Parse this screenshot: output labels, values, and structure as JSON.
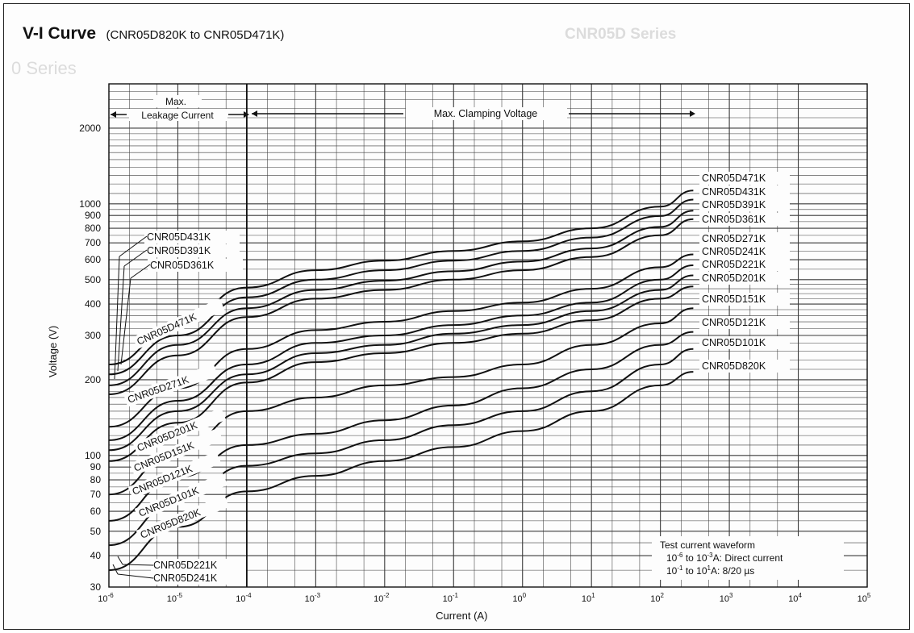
{
  "page": {
    "title": "V-I Curve",
    "subtitle": "(CNR05D820K to CNR05D471K)",
    "ghost_header": "CNR05D Series",
    "ghost_left": "0 Series"
  },
  "chart_data": {
    "type": "line",
    "x_scale": "log",
    "y_scale": "log",
    "xlim": [
      1e-06,
      10000
    ],
    "ylim": [
      30,
      3000
    ],
    "xlabel": "Current (A)",
    "ylabel": "Voltage (V)",
    "x_ticks": [
      {
        "value": 1e-06,
        "base": "10",
        "exp": "-6"
      },
      {
        "value": 1e-05,
        "base": "10",
        "exp": "-5"
      },
      {
        "value": 0.0001,
        "base": "10",
        "exp": "-4"
      },
      {
        "value": 0.001,
        "base": "10",
        "exp": "-3"
      },
      {
        "value": 0.01,
        "base": "10",
        "exp": "-2"
      },
      {
        "value": 0.1,
        "base": "10",
        "exp": "-1"
      },
      {
        "value": 1,
        "base": "10",
        "exp": "0"
      },
      {
        "value": 10,
        "base": "10",
        "exp": "1"
      },
      {
        "value": 100,
        "base": "10",
        "exp": "2"
      },
      {
        "value": 1000,
        "base": "10",
        "exp": "3"
      },
      {
        "value": 10000,
        "base": "10",
        "exp": "4"
      },
      {
        "value": 100000,
        "base": "10",
        "exp": "5"
      }
    ],
    "y_ticks": [
      {
        "value": 2000,
        "label": "2000"
      },
      {
        "value": 1000,
        "label": "1000"
      },
      {
        "value": 900,
        "label": "900"
      },
      {
        "value": 800,
        "label": "800"
      },
      {
        "value": 700,
        "label": "700"
      },
      {
        "value": 600,
        "label": "600"
      },
      {
        "value": 500,
        "label": "500"
      },
      {
        "value": 400,
        "label": "400"
      },
      {
        "value": 300,
        "label": "300"
      },
      {
        "value": 200,
        "label": "200"
      },
      {
        "value": 100,
        "label": "100"
      },
      {
        "value": 90,
        "label": "90"
      },
      {
        "value": 80,
        "label": "80"
      },
      {
        "value": 70,
        "label": "70"
      },
      {
        "value": 60,
        "label": "60"
      },
      {
        "value": 50,
        "label": "50"
      },
      {
        "value": 40,
        "label": "40"
      },
      {
        "value": 30,
        "label": "30"
      }
    ],
    "x_grid": [
      1e-06,
      2e-06,
      5e-06,
      1e-05,
      2e-05,
      5e-05,
      0.0001,
      0.0002,
      0.0005,
      0.001,
      0.002,
      0.005,
      0.01,
      0.02,
      0.05,
      0.1,
      0.2,
      0.5,
      1,
      2,
      5,
      10,
      20,
      50,
      100,
      200,
      500,
      1000,
      2000,
      5000,
      10000,
      100000
    ],
    "y_grid": [
      30,
      35,
      40,
      45,
      50,
      55,
      60,
      65,
      70,
      75,
      80,
      85,
      90,
      95,
      100,
      110,
      120,
      130,
      140,
      150,
      160,
      170,
      180,
      190,
      200,
      220,
      240,
      260,
      280,
      300,
      320,
      340,
      360,
      380,
      400,
      420,
      440,
      460,
      480,
      500,
      550,
      600,
      650,
      700,
      750,
      800,
      850,
      900,
      950,
      1000,
      1100,
      1200,
      1300,
      1400,
      1500,
      1600,
      1700,
      1800,
      1900,
      2000,
      2200,
      2400,
      2600,
      2800,
      3000
    ],
    "series": [
      {
        "name": "CNR05D820K",
        "x": [
          1e-06,
          1e-05,
          0.0001,
          0.001,
          0.01,
          0.1,
          1,
          10,
          100,
          300
        ],
        "y": [
          35,
          52,
          72,
          83,
          95,
          108,
          125,
          150,
          190,
          215
        ],
        "end_label": "CNR05D820K",
        "start_label": "CNR05D820K"
      },
      {
        "name": "CNR05D101K",
        "x": [
          1e-06,
          1e-05,
          0.0001,
          0.001,
          0.01,
          0.1,
          1,
          10,
          100,
          300
        ],
        "y": [
          44,
          66,
          91,
          102,
          115,
          132,
          150,
          180,
          230,
          265
        ],
        "end_label": "CNR05D101K",
        "start_label": "CNR05D101K"
      },
      {
        "name": "CNR05D121K",
        "x": [
          1e-06,
          1e-05,
          0.0001,
          0.001,
          0.01,
          0.1,
          1,
          10,
          100,
          300
        ],
        "y": [
          55,
          82,
          110,
          122,
          138,
          158,
          185,
          220,
          275,
          310
        ],
        "end_label": "CNR05D121K",
        "start_label": "CNR05D121K"
      },
      {
        "name": "CNR05D151K",
        "x": [
          1e-06,
          1e-05,
          0.0001,
          0.001,
          0.01,
          0.1,
          1,
          10,
          100,
          300
        ],
        "y": [
          70,
          105,
          150,
          170,
          190,
          205,
          230,
          275,
          335,
          385
        ],
        "end_label": "CNR05D151K",
        "start_label": "CNR05D151K"
      },
      {
        "name": "CNR05D201K",
        "x": [
          1e-06,
          1e-05,
          0.0001,
          0.001,
          0.01,
          0.1,
          1,
          10,
          100,
          300
        ],
        "y": [
          95,
          135,
          195,
          235,
          255,
          280,
          305,
          345,
          420,
          470
        ],
        "end_label": "CNR05D201K",
        "start_label": "CNR05D201K"
      },
      {
        "name": "CNR05D221K",
        "x": [
          1e-06,
          1e-05,
          0.0001,
          0.001,
          0.01,
          0.1,
          1,
          10,
          100,
          300
        ],
        "y": [
          105,
          150,
          210,
          255,
          275,
          305,
          330,
          375,
          455,
          520
        ],
        "end_label": "CNR05D221K",
        "start_label": "CNR05D221K"
      },
      {
        "name": "CNR05D241K",
        "x": [
          1e-06,
          1e-05,
          0.0001,
          0.001,
          0.01,
          0.1,
          1,
          10,
          100,
          300
        ],
        "y": [
          115,
          165,
          230,
          280,
          300,
          330,
          360,
          405,
          500,
          570
        ],
        "end_label": "CNR05D241K",
        "start_label": "CNR05D241K"
      },
      {
        "name": "CNR05D271K",
        "x": [
          1e-06,
          1e-05,
          0.0001,
          0.001,
          0.01,
          0.1,
          1,
          10,
          100,
          300
        ],
        "y": [
          130,
          185,
          265,
          315,
          340,
          375,
          405,
          460,
          560,
          630
        ],
        "end_label": "CNR05D271K",
        "start_label": "CNR05D271K"
      },
      {
        "name": "CNR05D361K",
        "x": [
          1e-06,
          1e-05,
          0.0001,
          0.001,
          0.01,
          0.1,
          1,
          10,
          100,
          300
        ],
        "y": [
          175,
          250,
          355,
          420,
          455,
          500,
          545,
          615,
          750,
          870
        ],
        "end_label": "CNR05D361K",
        "start_label": "CNR05D361K"
      },
      {
        "name": "CNR05D391K",
        "x": [
          1e-06,
          1e-05,
          0.0001,
          0.001,
          0.01,
          0.1,
          1,
          10,
          100,
          300
        ],
        "y": [
          190,
          275,
          385,
          455,
          495,
          540,
          590,
          665,
          810,
          940
        ],
        "end_label": "CNR05D391K",
        "start_label": "CNR05D391K"
      },
      {
        "name": "CNR05D431K",
        "x": [
          1e-06,
          1e-05,
          0.0001,
          0.001,
          0.01,
          0.1,
          1,
          10,
          100,
          300
        ],
        "y": [
          210,
          300,
          425,
          500,
          545,
          595,
          650,
          735,
          895,
          1040
        ],
        "end_label": "CNR05D431K",
        "start_label": "CNR05D431K"
      },
      {
        "name": "CNR05D471K",
        "x": [
          1e-06,
          1e-05,
          0.0001,
          0.001,
          0.01,
          0.1,
          1,
          10,
          100,
          300
        ],
        "y": [
          230,
          330,
          465,
          545,
          595,
          650,
          710,
          800,
          975,
          1130
        ],
        "end_label": "CNR05D471K",
        "start_label": "CNR05D471K"
      }
    ],
    "annotations": {
      "leakage_line1": "Max.",
      "leakage_line2": "Leakage Current",
      "clamping": "Max. Clamping Voltage",
      "waveform_title": "Test current waveform",
      "waveform_line1_a": "10",
      "waveform_line1_a_exp": "-6",
      "waveform_line1_b": " to 10",
      "waveform_line1_b_exp": "-3",
      "waveform_line1_c": "A: Direct current",
      "waveform_line2_a": "10",
      "waveform_line2_a_exp": "-1",
      "waveform_line2_b": " to 10",
      "waveform_line2_b_exp": "1",
      "waveform_line2_c": "A:   8/20 µs"
    },
    "colors": {
      "line": "#111111",
      "grid": "#3a3a3a",
      "background": "#fdfdfd"
    }
  }
}
